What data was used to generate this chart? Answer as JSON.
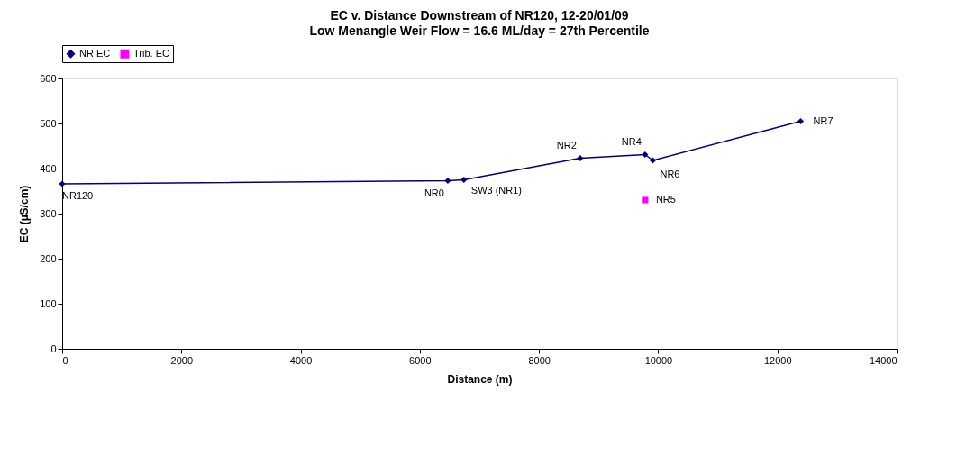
{
  "chart_data": {
    "type": "line",
    "title": "EC v. Distance Downstream of NR120, 12-20/01/09",
    "subtitle": "Low Menangle Weir Flow = 16.6 ML/day = 27th Percentile",
    "xlabel": "Distance (m)",
    "ylabel": "EC (µS/cm)",
    "xlim": [
      0,
      14000
    ],
    "xticks": [
      0,
      2000,
      4000,
      6000,
      8000,
      10000,
      12000,
      14000
    ],
    "ylim": [
      0,
      600
    ],
    "yticks": [
      0,
      100,
      200,
      300,
      400,
      500,
      600
    ],
    "grid": false,
    "legend": "top",
    "series": [
      {
        "name": "NR EC",
        "color": "#000080",
        "marker": "diamond",
        "line_style": "solid",
        "x": [
          0,
          6470,
          6740,
          8690,
          9780,
          9910,
          12390
        ],
        "values": [
          366,
          373,
          375,
          423,
          431,
          418,
          505
        ]
      },
      {
        "name": "Trib. EC",
        "type": "scatter",
        "color": "#ff00ff",
        "marker": "square",
        "x": [
          9780
        ],
        "values": [
          330
        ]
      }
    ],
    "annotations": [
      {
        "text": "NR120",
        "x": 0,
        "y": 366
      },
      {
        "text": "NR0",
        "x": 6470,
        "y": 373
      },
      {
        "text": "SW3 (NR1)",
        "x": 6740,
        "y": 375
      },
      {
        "text": "NR2",
        "x": 8690,
        "y": 423
      },
      {
        "text": "NR4",
        "x": 9780,
        "y": 431
      },
      {
        "text": "NR6",
        "x": 9910,
        "y": 418
      },
      {
        "text": "NR7",
        "x": 12390,
        "y": 505
      },
      {
        "text": "NR5",
        "x": 9780,
        "y": 330
      }
    ]
  }
}
